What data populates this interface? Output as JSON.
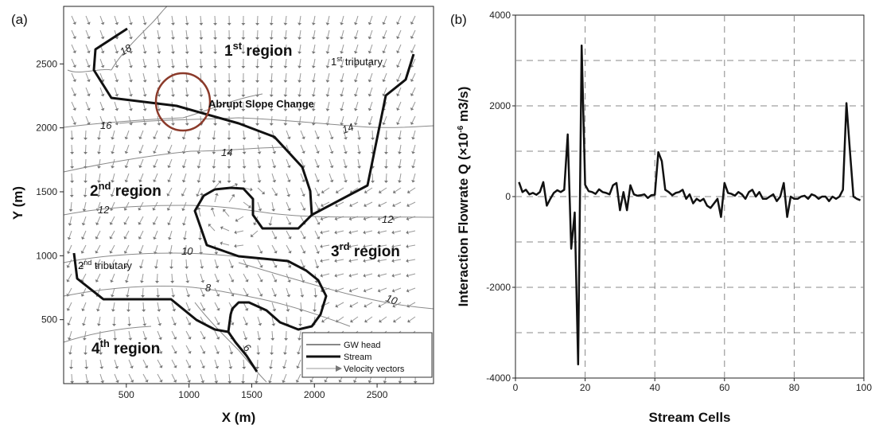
{
  "panel_labels": {
    "a": "(a)",
    "b": "(b)"
  },
  "chart_data": [
    {
      "type": "map",
      "panel": "(a)",
      "xlabel": "X (m)",
      "ylabel": "Y (m)",
      "xlim": [
        0,
        2950
      ],
      "ylim": [
        0,
        2950
      ],
      "xticks": [
        500,
        1000,
        1500,
        2000,
        2500
      ],
      "yticks": [
        500,
        1000,
        1500,
        2000,
        2500
      ],
      "region_labels": [
        {
          "ord": "1",
          "sup": "st",
          "text": " region"
        },
        {
          "ord": "2",
          "sup": "nd",
          "text": " region"
        },
        {
          "ord": "3",
          "sup": "rd",
          "text": " region"
        },
        {
          "ord": "4",
          "sup": "th",
          "text": " region"
        }
      ],
      "tributaries": [
        {
          "ord": "1",
          "sup": "st",
          "text": " tributary"
        },
        {
          "ord": "2",
          "sup": "nd",
          "text": " tributary"
        }
      ],
      "annotation": "Abrupt Slope Change",
      "contour_labels": [
        "18",
        "16",
        "14",
        "14",
        "12",
        "12",
        "10",
        "10",
        "8",
        "6"
      ],
      "legend": [
        "GW head",
        "Stream",
        "Velocity vectors"
      ]
    },
    {
      "type": "line",
      "panel": "(b)",
      "xlabel": "Stream Cells",
      "ylabel": "Interaction Flowrate Q (×10-6 m3/s)",
      "xlim": [
        0,
        100
      ],
      "ylim": [
        -4000,
        4000
      ],
      "xticks": [
        0,
        20,
        40,
        60,
        80,
        100
      ],
      "yticks": [
        -4000,
        -2000,
        0,
        2000,
        4000
      ],
      "grid": true,
      "series": [
        {
          "x": [
            1,
            2,
            3,
            4,
            5,
            6,
            7,
            8,
            9,
            10,
            11,
            12,
            13,
            14,
            15,
            16,
            17,
            18,
            19,
            20,
            21,
            22,
            23,
            24,
            25,
            26,
            27,
            28,
            29,
            30,
            31,
            32,
            33,
            34,
            35,
            36,
            37,
            38,
            39,
            40,
            41,
            42,
            43,
            44,
            45,
            46,
            47,
            48,
            49,
            50,
            51,
            52,
            53,
            54,
            55,
            56,
            57,
            58,
            59,
            60,
            61,
            62,
            63,
            64,
            65,
            66,
            67,
            68,
            69,
            70,
            71,
            72,
            73,
            74,
            75,
            76,
            77,
            78,
            79,
            80,
            81,
            82,
            83,
            84,
            85,
            86,
            87,
            88,
            89,
            90,
            91,
            92,
            93,
            94,
            95,
            96,
            97,
            98,
            99
          ],
          "y": [
            320,
            100,
            150,
            50,
            80,
            40,
            100,
            320,
            -200,
            -50,
            80,
            140,
            100,
            150,
            1370,
            -1150,
            -350,
            -3700,
            3330,
            260,
            120,
            100,
            60,
            160,
            100,
            80,
            50,
            250,
            300,
            -300,
            100,
            -300,
            250,
            50,
            20,
            30,
            50,
            -30,
            30,
            40,
            980,
            780,
            150,
            100,
            30,
            80,
            100,
            150,
            -50,
            50,
            -150,
            -50,
            -100,
            -50,
            -200,
            -250,
            -150,
            -50,
            -450,
            300,
            80,
            60,
            20,
            100,
            50,
            -50,
            100,
            150,
            0,
            100,
            -50,
            -50,
            0,
            50,
            -100,
            0,
            300,
            -450,
            0,
            -50,
            -50,
            0,
            20,
            -50,
            50,
            20,
            -50,
            0,
            0,
            -100,
            0,
            -50,
            0,
            150,
            2060,
            1000,
            0,
            -50,
            -80
          ]
        }
      ]
    }
  ]
}
